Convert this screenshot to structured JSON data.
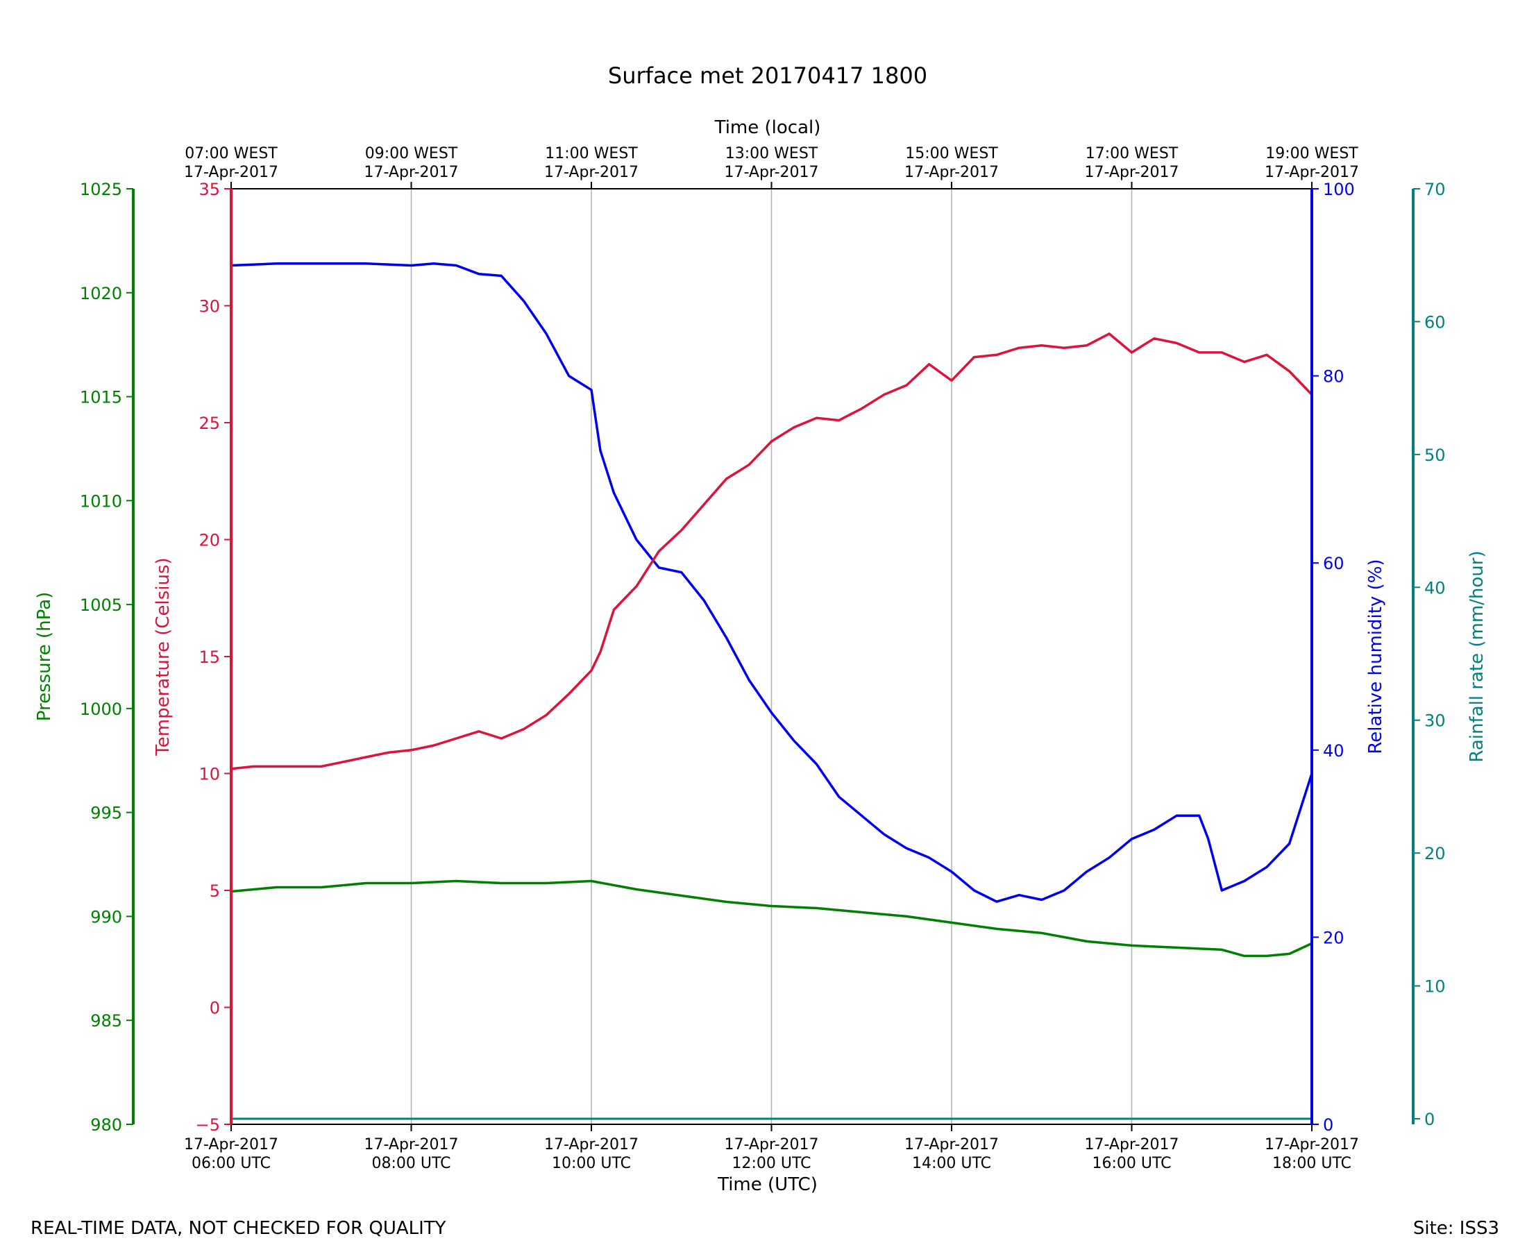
{
  "footer": {
    "left_note": "REAL-TIME DATA, NOT CHECKED FOR QUALITY",
    "site": "Site: ISS3"
  },
  "colors": {
    "temperature": "#dc143c",
    "humidity": "#0000ee",
    "pressure": "#008000",
    "rainfall": "#008080",
    "grid": "#b0b0b0",
    "frame": "#000000"
  },
  "chart_data": {
    "type": "line",
    "title": "Surface met 20170417 1800",
    "xlabel": "Time (UTC)",
    "x2label": "Time (local)",
    "xlim": [
      6,
      18
    ],
    "grid": true,
    "x_ticks_utc": [
      {
        "t": 6,
        "date": "17-Apr-2017",
        "time": "06:00 UTC"
      },
      {
        "t": 8,
        "date": "17-Apr-2017",
        "time": "08:00 UTC"
      },
      {
        "t": 10,
        "date": "17-Apr-2017",
        "time": "10:00 UTC"
      },
      {
        "t": 12,
        "date": "17-Apr-2017",
        "time": "12:00 UTC"
      },
      {
        "t": 14,
        "date": "17-Apr-2017",
        "time": "14:00 UTC"
      },
      {
        "t": 16,
        "date": "17-Apr-2017",
        "time": "16:00 UTC"
      },
      {
        "t": 18,
        "date": "17-Apr-2017",
        "time": "18:00 UTC"
      }
    ],
    "x_ticks_local": [
      {
        "t": 6,
        "time": "07:00 WEST",
        "date": "17-Apr-2017"
      },
      {
        "t": 8,
        "time": "09:00 WEST",
        "date": "17-Apr-2017"
      },
      {
        "t": 10,
        "time": "11:00 WEST",
        "date": "17-Apr-2017"
      },
      {
        "t": 12,
        "time": "13:00 WEST",
        "date": "17-Apr-2017"
      },
      {
        "t": 14,
        "time": "15:00 WEST",
        "date": "17-Apr-2017"
      },
      {
        "t": 16,
        "time": "17:00 WEST",
        "date": "17-Apr-2017"
      },
      {
        "t": 18,
        "time": "19:00 WEST",
        "date": "17-Apr-2017"
      }
    ],
    "axes": {
      "pressure": {
        "label": "Pressure (hPa)",
        "ylim": [
          980,
          1025
        ],
        "ticks": [
          "980",
          "985",
          "990",
          "995",
          "1000",
          "1005",
          "1010",
          "1015",
          "1020",
          "1025"
        ]
      },
      "temperature": {
        "label": "Temperature (Celsius)",
        "ylim": [
          -5,
          35
        ],
        "ticks": [
          "−5",
          "0",
          "5",
          "10",
          "15",
          "20",
          "25",
          "30",
          "35"
        ]
      },
      "humidity": {
        "label": "Relative humidity (%)",
        "ylim": [
          0,
          100
        ],
        "ticks": [
          "0",
          "20",
          "40",
          "60",
          "80",
          "100"
        ]
      },
      "rainfall": {
        "label": "Rainfall rate (mm/hour)",
        "ylim": [
          0,
          70
        ],
        "ticks": [
          "0",
          "10",
          "20",
          "30",
          "40",
          "50",
          "60",
          "70"
        ]
      }
    },
    "series": [
      {
        "axis": "temperature",
        "x": [
          6.0,
          6.25,
          6.5,
          6.75,
          7.0,
          7.25,
          7.5,
          7.75,
          8.0,
          8.25,
          8.5,
          8.75,
          9.0,
          9.25,
          9.5,
          9.75,
          10.0,
          10.1,
          10.25,
          10.5,
          10.75,
          11.0,
          11.25,
          11.5,
          11.75,
          12.0,
          12.25,
          12.5,
          12.75,
          13.0,
          13.25,
          13.5,
          13.75,
          14.0,
          14.25,
          14.5,
          14.75,
          15.0,
          15.25,
          15.5,
          15.75,
          16.0,
          16.25,
          16.5,
          16.75,
          17.0,
          17.25,
          17.5,
          17.75,
          18.0
        ],
        "values": [
          10.2,
          10.3,
          10.3,
          10.3,
          10.3,
          10.5,
          10.7,
          10.9,
          11.0,
          11.2,
          11.5,
          11.8,
          11.5,
          11.9,
          12.5,
          13.4,
          14.4,
          15.2,
          17.0,
          18.0,
          19.5,
          20.4,
          21.5,
          22.6,
          23.2,
          24.2,
          24.8,
          25.2,
          25.1,
          25.6,
          26.2,
          26.6,
          27.5,
          26.8,
          27.8,
          27.9,
          28.2,
          28.3,
          28.2,
          28.3,
          28.8,
          28.0,
          28.6,
          28.4,
          28.0,
          28.0,
          27.6,
          27.9,
          27.2,
          26.2
        ]
      },
      {
        "axis": "humidity",
        "x": [
          6.0,
          6.5,
          7.0,
          7.5,
          8.0,
          8.25,
          8.5,
          8.75,
          9.0,
          9.25,
          9.5,
          9.75,
          10.0,
          10.1,
          10.25,
          10.5,
          10.75,
          11.0,
          11.25,
          11.5,
          11.75,
          12.0,
          12.25,
          12.5,
          12.75,
          13.0,
          13.25,
          13.5,
          13.75,
          14.0,
          14.25,
          14.5,
          14.75,
          15.0,
          15.25,
          15.5,
          15.75,
          16.0,
          16.25,
          16.5,
          16.75,
          16.85,
          17.0,
          17.25,
          17.5,
          17.75,
          18.0
        ],
        "values": [
          91.8,
          92.0,
          92.0,
          92.0,
          91.8,
          92.0,
          91.8,
          90.9,
          90.7,
          88.0,
          84.5,
          80.0,
          78.5,
          72.0,
          67.5,
          62.5,
          59.5,
          59.0,
          56.0,
          52.0,
          47.5,
          44.0,
          41.0,
          38.5,
          35.0,
          33.0,
          31.0,
          29.5,
          28.5,
          27.0,
          25.0,
          23.8,
          24.5,
          24.0,
          25.0,
          27.0,
          28.5,
          30.5,
          31.5,
          33.0,
          33.0,
          30.5,
          25.0,
          26.0,
          27.5,
          30.0,
          37.5
        ]
      },
      {
        "axis": "pressure",
        "x": [
          6.0,
          6.5,
          7.0,
          7.5,
          8.0,
          8.5,
          9.0,
          9.5,
          10.0,
          10.5,
          11.0,
          11.5,
          12.0,
          12.5,
          13.0,
          13.5,
          14.0,
          14.5,
          15.0,
          15.5,
          16.0,
          16.5,
          17.0,
          17.25,
          17.5,
          17.75,
          18.0
        ],
        "values": [
          991.2,
          991.4,
          991.4,
          991.6,
          991.6,
          991.7,
          991.6,
          991.6,
          991.7,
          991.3,
          991.0,
          990.7,
          990.5,
          990.4,
          990.2,
          990.0,
          989.7,
          989.4,
          989.2,
          988.8,
          988.6,
          988.5,
          988.4,
          988.1,
          988.1,
          988.2,
          988.7
        ]
      },
      {
        "axis": "rainfall",
        "x": [
          6.0,
          18.0
        ],
        "values": [
          0.0,
          0.0
        ]
      }
    ]
  }
}
